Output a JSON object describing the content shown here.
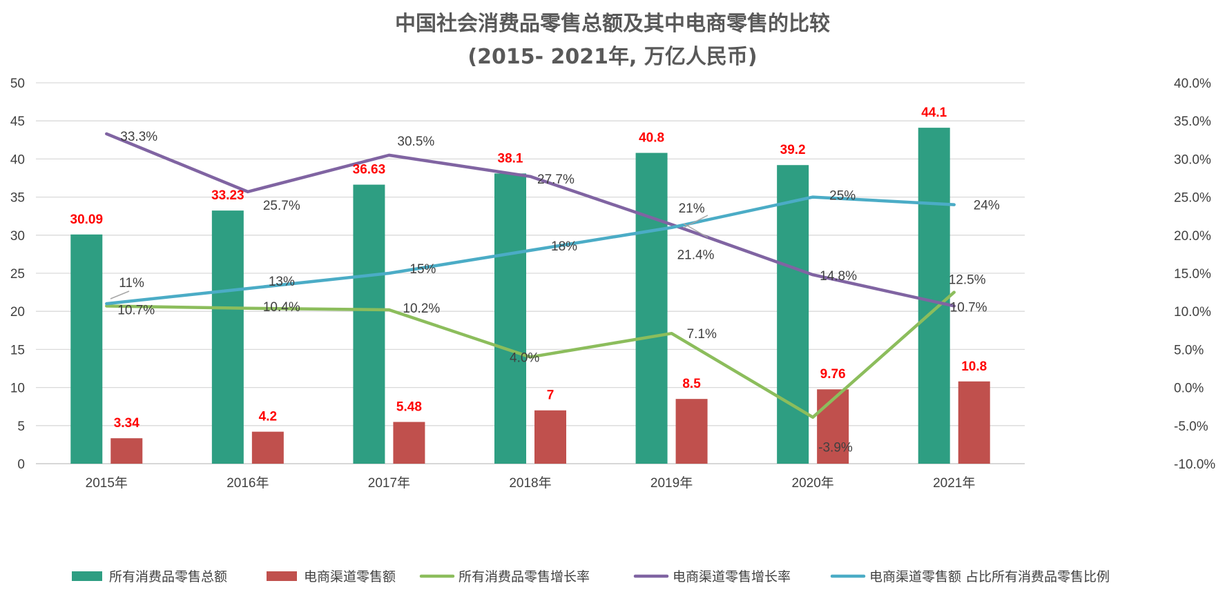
{
  "chart_data": {
    "type": "bar",
    "title": "中国社会消费品零售总额及其中电商零售的比较",
    "subtitle": "(2015- 2021年, 万亿人民币)",
    "categories": [
      "2015年",
      "2016年",
      "2017年",
      "2018年",
      "2019年",
      "2020年",
      "2021年"
    ],
    "y_left": {
      "min": 0,
      "max": 50,
      "ticks": [
        "0",
        "5",
        "10",
        "15",
        "20",
        "25",
        "30",
        "35",
        "40",
        "45",
        "50"
      ]
    },
    "y_right": {
      "min": -10,
      "max": 40,
      "ticks": [
        "-10.0%",
        "-5.0%",
        "0.0%",
        "5.0%",
        "10.0%",
        "15.0%",
        "20.0%",
        "25.0%",
        "30.0%",
        "35.0%",
        "40.0%"
      ]
    },
    "grid": true,
    "legend_position": "bottom",
    "series": [
      {
        "name": "所有消费品零售总额",
        "type": "bar",
        "axis": "left",
        "color": "#2e9e82",
        "values": [
          30.09,
          33.23,
          36.63,
          38.1,
          40.8,
          39.2,
          44.1
        ],
        "labels": [
          "30.09",
          "33.23",
          "36.63",
          "38.1",
          "40.8",
          "39.2",
          "44.1"
        ]
      },
      {
        "name": "电商渠道零售额",
        "type": "bar",
        "axis": "left",
        "color": "#c0504d",
        "values": [
          3.34,
          4.2,
          5.48,
          7,
          8.5,
          9.76,
          10.8
        ],
        "labels": [
          "3.34",
          "4.2",
          "5.48",
          "7",
          "8.5",
          "9.76",
          "10.8"
        ]
      },
      {
        "name": "所有消费品零售增长率",
        "type": "line",
        "axis": "right",
        "color": "#8cbd5c",
        "values": [
          10.7,
          10.4,
          10.2,
          4.0,
          7.1,
          -3.9,
          12.5
        ],
        "labels": [
          "10.7%",
          "10.4%",
          "10.2%",
          "4.0%",
          "7.1%",
          "-3.9%",
          "12.5%"
        ]
      },
      {
        "name": "电商渠道零售增长率",
        "type": "line",
        "axis": "right",
        "color": "#8064a2",
        "values": [
          33.3,
          25.7,
          30.5,
          27.7,
          21.4,
          14.8,
          10.7
        ],
        "labels": [
          "33.3%",
          "25.7%",
          "30.5%",
          "27.7%",
          "21.4%",
          "14.8%",
          "10.7%"
        ]
      },
      {
        "name": "电商渠道零售额 占比所有消费品零售比例",
        "type": "line",
        "axis": "right",
        "color": "#4bacc6",
        "values": [
          11,
          13,
          15,
          18,
          21,
          25,
          24
        ],
        "labels": [
          "11%",
          "13%",
          "15%",
          "18%",
          "21%",
          "25%",
          "24%"
        ]
      }
    ]
  }
}
